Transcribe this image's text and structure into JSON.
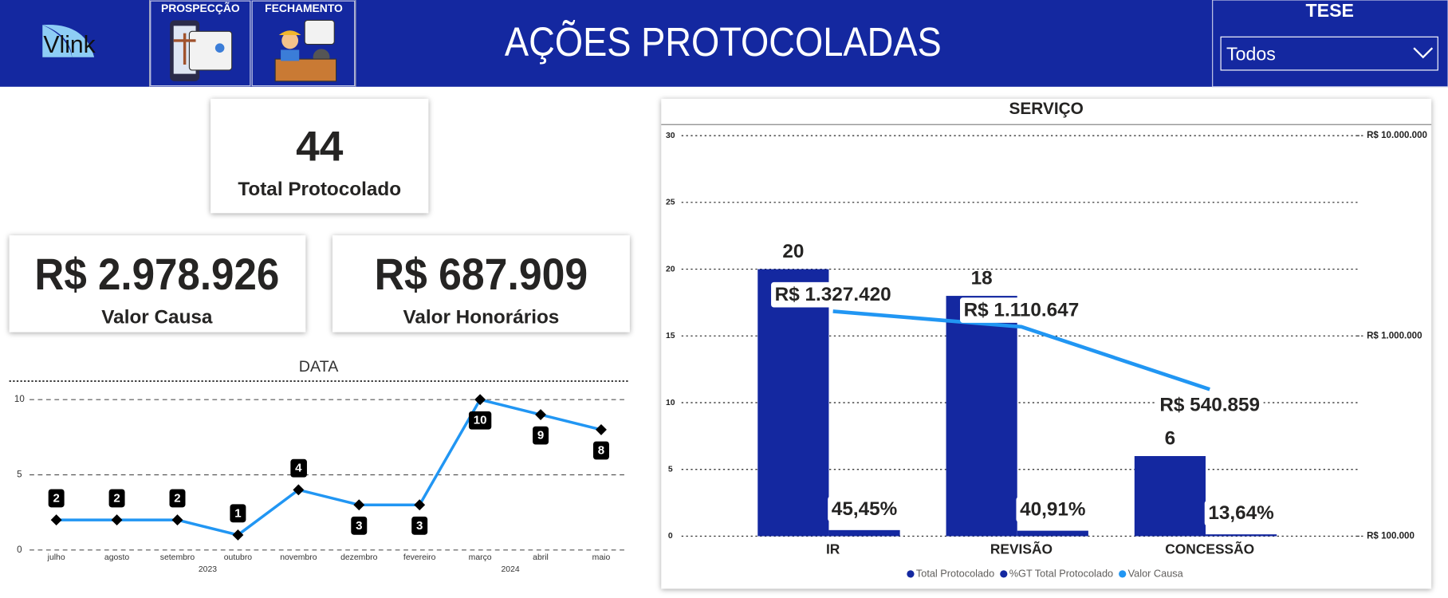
{
  "header": {
    "logo": "Vlink",
    "nav": [
      "PROSPECÇÃO",
      "FECHAMENTO"
    ],
    "title": "AÇÕES PROTOCOLADAS",
    "filter": {
      "label": "TESE",
      "value": "Todos"
    }
  },
  "cards": [
    {
      "value": 44,
      "label": "Total Protocolado"
    },
    {
      "value": "R$ 2.978.926",
      "label": "Valor Causa"
    },
    {
      "value": "R$ 687.909",
      "label": "Valor Honorários"
    }
  ],
  "chart_data": [
    {
      "type": "line",
      "title": "DATA",
      "categories": [
        "julho",
        "agosto",
        "setembro",
        "outubro",
        "novembro",
        "dezembro",
        "fevereiro",
        "março",
        "abril",
        "maio"
      ],
      "x_groups": [
        {
          "label": "2023",
          "count": 6
        },
        {
          "label": "2024",
          "count": 4
        }
      ],
      "values": [
        2,
        2,
        2,
        1,
        4,
        3,
        3,
        10,
        9,
        8
      ],
      "color": "#2196f3",
      "ylim": [
        0,
        10
      ],
      "yticks": [
        0,
        5,
        10
      ],
      "grid": true
    },
    {
      "type": "combo",
      "title": "SERVIÇO",
      "categories": [
        "IR",
        "REVISÃO",
        "CONCESSÃO"
      ],
      "series": [
        {
          "name": "Total Protocolado",
          "type": "bar",
          "color": "#1428a0",
          "values": [
            20,
            18,
            6
          ]
        },
        {
          "name": "%GT Total Protocolado",
          "type": "bar",
          "color": "#1428a0",
          "values": [
            0.4545,
            0.4091,
            0.1364
          ],
          "value_labels": [
            "45,45%",
            "40,91%",
            "13,64%"
          ]
        },
        {
          "name": "Valor Causa",
          "type": "line",
          "axis": "y2",
          "color": "#2196f3",
          "values": [
            1327420,
            1110647,
            540859
          ],
          "value_labels": [
            "R$ 1.327.420",
            "R$ 1.110.647",
            "R$ 540.859"
          ]
        }
      ],
      "ylim": [
        0,
        30
      ],
      "yticks": [
        0,
        5,
        10,
        15,
        20,
        25,
        30
      ],
      "y2lim": [
        100000,
        10000000
      ],
      "y2log": true,
      "y2ticks": [
        {
          "value": 100000,
          "label": "R$ 100.000"
        },
        {
          "value": 1000000,
          "label": "R$ 1.000.000"
        },
        {
          "value": 10000000,
          "label": "R$ 10.000.000"
        }
      ],
      "grid": true,
      "legend": "bottom"
    }
  ]
}
